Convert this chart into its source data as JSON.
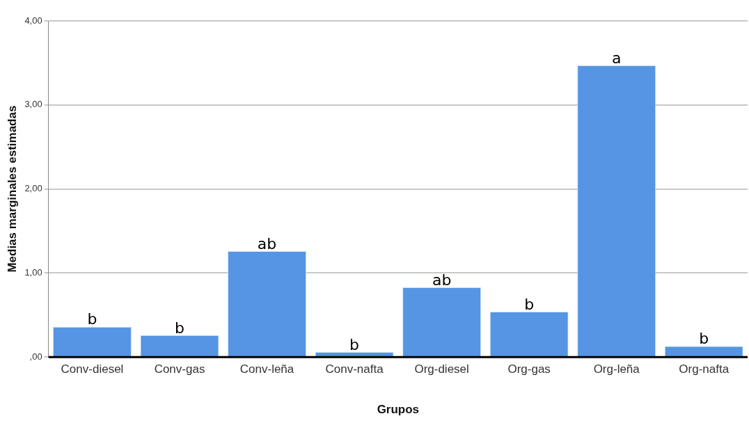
{
  "chart_data": {
    "type": "bar",
    "xlabel": "Grupos",
    "ylabel": "Medias marginales estimadas",
    "categories": [
      "Conv-diesel",
      "Conv-gas",
      "Conv-leña",
      "Conv-nafta",
      "Org-diesel",
      "Org-gas",
      "Org-leña",
      "Org-nafta"
    ],
    "values": [
      0.36,
      0.26,
      1.26,
      0.06,
      0.83,
      0.54,
      3.47,
      0.13
    ],
    "value_labels": [
      "b",
      "b",
      "ab",
      "b",
      "ab",
      "b",
      "a",
      "b"
    ],
    "color": "#5595e3",
    "ylim": [
      0,
      4
    ],
    "yticks": [
      {
        "value": 0,
        "label": ",00"
      },
      {
        "value": 1,
        "label": "1,00"
      },
      {
        "value": 2,
        "label": "2,00"
      },
      {
        "value": 3,
        "label": "3,00"
      },
      {
        "value": 4,
        "label": "4,00"
      }
    ],
    "grid": "y",
    "legend": false
  }
}
